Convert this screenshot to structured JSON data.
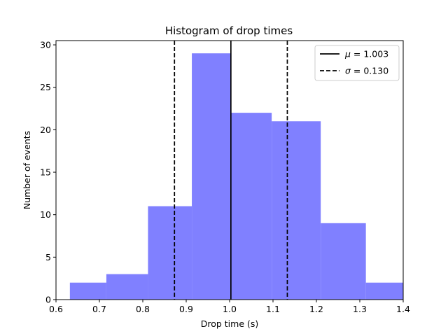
{
  "chart_data": {
    "type": "bar",
    "title": "Histogram of drop times",
    "xlabel": "Drop time (s)",
    "ylabel": "Number of events",
    "xlim": [
      0.6,
      1.4
    ],
    "ylim": [
      0,
      30.5
    ],
    "xticks": [
      0.6,
      0.7,
      0.8,
      0.9,
      1.0,
      1.1,
      1.2,
      1.3,
      1.4
    ],
    "xtick_labels": [
      "0.6",
      "0.7",
      "0.8",
      "0.9",
      "1.0",
      "1.1",
      "1.2",
      "1.3",
      "1.4"
    ],
    "yticks": [
      0,
      5,
      10,
      15,
      20,
      25,
      30
    ],
    "ytick_labels": [
      "0",
      "5",
      "10",
      "15",
      "20",
      "25",
      "30"
    ],
    "bin_edges": [
      0.632,
      0.716,
      0.812,
      0.913,
      1.003,
      1.097,
      1.21,
      1.314
    ],
    "bins": [
      {
        "x0": 0.632,
        "x1": 0.716,
        "count": 2
      },
      {
        "x0": 0.716,
        "x1": 0.812,
        "count": 3
      },
      {
        "x0": 0.812,
        "x1": 0.913,
        "count": 11
      },
      {
        "x0": 0.913,
        "x1": 1.003,
        "count": 29
      },
      {
        "x0": 1.003,
        "x1": 1.097,
        "count": 22
      },
      {
        "x0": 1.097,
        "x1": 1.21,
        "count": 21
      },
      {
        "x0": 1.21,
        "x1": 1.314,
        "count": 9
      },
      {
        "x0": 1.314,
        "x1": 1.41,
        "count": 2
      }
    ],
    "bar_color": "#8080ff",
    "mean": 1.003,
    "sigma": 0.13,
    "vlines": [
      {
        "x": 1.003,
        "style": "solid"
      },
      {
        "x": 0.873,
        "style": "dashed"
      },
      {
        "x": 1.133,
        "style": "dashed"
      }
    ],
    "legend": {
      "position": "top-right",
      "entries": [
        {
          "symbol": "μ",
          "text": " = 1.003",
          "style": "solid"
        },
        {
          "symbol": "σ",
          "text": " = 0.130",
          "style": "dashed"
        }
      ]
    }
  }
}
